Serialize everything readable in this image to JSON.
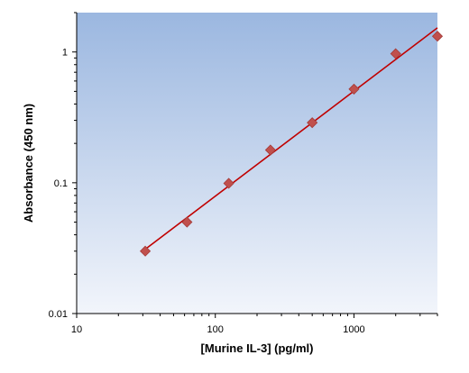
{
  "chart_data": {
    "type": "scatter",
    "title": "",
    "xlabel": "[Murine IL-3] (pg/ml)",
    "ylabel": "Absorbance (450 nm)",
    "x_scale": "log",
    "y_scale": "log",
    "xlim": [
      10,
      4000
    ],
    "ylim": [
      0.01,
      2
    ],
    "x_ticks": [
      10,
      100,
      1000
    ],
    "x_tick_labels": [
      "10",
      "100",
      "1000"
    ],
    "y_ticks": [
      0.01,
      0.1,
      1
    ],
    "y_tick_labels": [
      "0.01",
      "0.1",
      "1"
    ],
    "grid": false,
    "legend": "none",
    "series": [
      {
        "x": [
          31.25,
          62.5,
          125,
          250,
          500,
          1000,
          2000,
          4000
        ],
        "y": [
          0.03,
          0.05,
          0.099,
          0.178,
          0.288,
          0.52,
          0.97,
          1.32
        ],
        "marker": "diamond",
        "color": "#c0504d",
        "fit_line": true,
        "fit_color": "#c00000"
      }
    ],
    "plot_background": {
      "top": "#9bb7e0",
      "bottom": "#f2f5fb"
    }
  }
}
